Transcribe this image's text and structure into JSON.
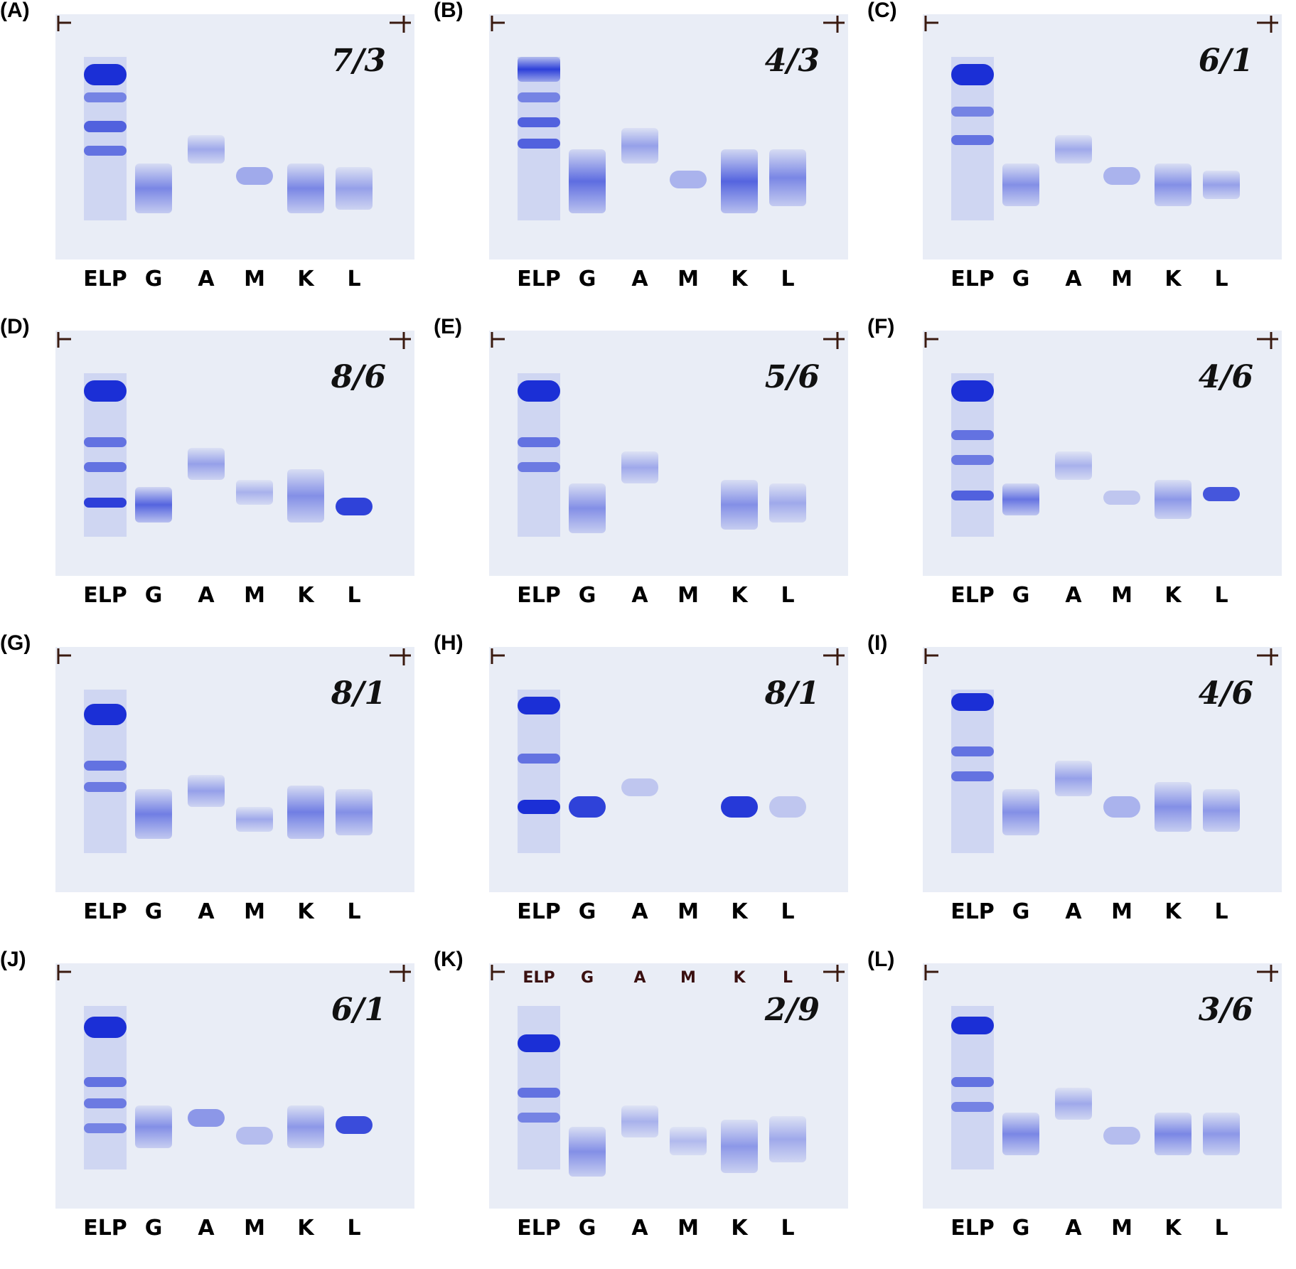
{
  "lane_labels": [
    "ELP",
    "G",
    "A",
    "M",
    "K",
    "L"
  ],
  "panels": [
    {
      "label": "(A)",
      "note": "7/3"
    },
    {
      "label": "(B)",
      "note": "4/3"
    },
    {
      "label": "(C)",
      "note": "6/1"
    },
    {
      "label": "(D)",
      "note": "8/6"
    },
    {
      "label": "(E)",
      "note": "5/6"
    },
    {
      "label": "(F)",
      "note": "4/6"
    },
    {
      "label": "(G)",
      "note": "8/1"
    },
    {
      "label": "(H)",
      "note": "8/1"
    },
    {
      "label": "(I)",
      "note": "4/6"
    },
    {
      "label": "(J)",
      "note": "6/1"
    },
    {
      "label": "(K)",
      "note": "2/9"
    },
    {
      "label": "(L)",
      "note": "3/6"
    }
  ],
  "colors": {
    "gel_background": "#e9edf6",
    "stain_blue": "#1b2fd6"
  }
}
